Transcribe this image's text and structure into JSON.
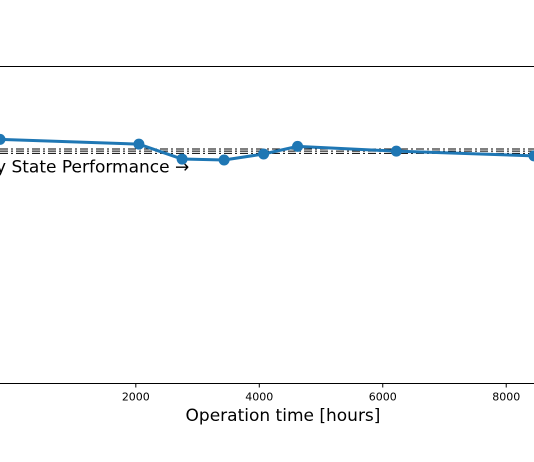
{
  "chart_data": {
    "type": "line",
    "xlabel": "Operation time [hours]",
    "ylabel": "",
    "xlim": [
      -200,
      8450
    ],
    "ylim": [
      0,
      100
    ],
    "x_ticks": [
      2000,
      4000,
      6000,
      8000
    ],
    "x_tick_labels": [
      "2000",
      "4000",
      "6000",
      "8000"
    ],
    "grid": false,
    "series": [
      {
        "color": "#1f77b4",
        "marker": "circle",
        "x": [
          -200,
          2050,
          2750,
          3430,
          4070,
          4620,
          6220,
          8450
        ],
        "y": [
          77.0,
          75.5,
          70.8,
          70.5,
          72.4,
          74.8,
          73.3,
          71.8
        ]
      }
    ],
    "reference_line": {
      "y": 73.3,
      "style": "dash-dot",
      "color": "#000000"
    },
    "annotation": {
      "text": "y State Performance →",
      "x": -200,
      "y": 68.5
    }
  }
}
